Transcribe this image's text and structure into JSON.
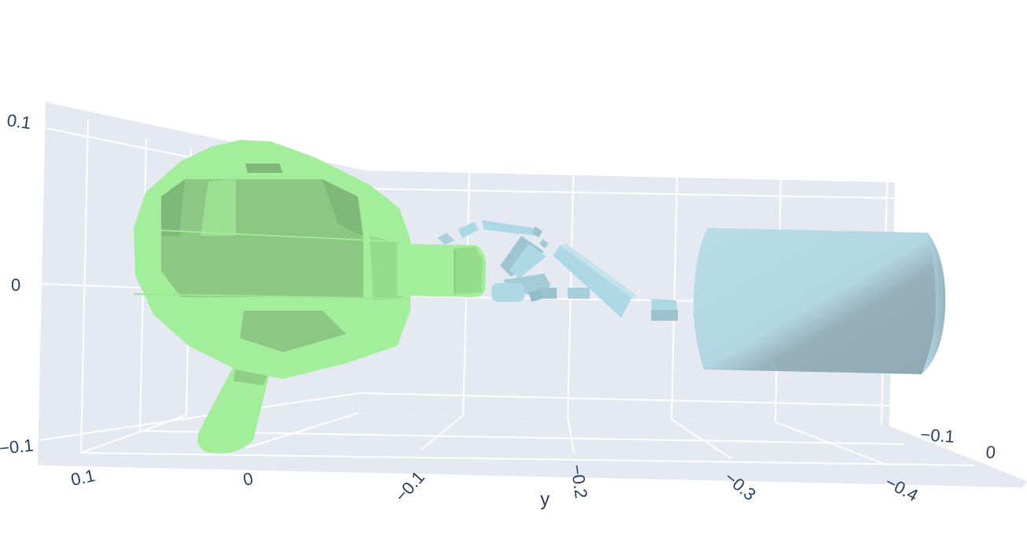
{
  "chart_data": {
    "type": "3d-mesh",
    "title": "",
    "colors": {
      "background": "#ffffff",
      "pane": "#e5e9f2",
      "grid": "#ffffff",
      "tick_text": "#2a3f5f",
      "object_mesh": "#a3ee9a",
      "gripper_mesh": "#add8e6"
    },
    "axes": {
      "y": {
        "title": "y",
        "ticks": [
          0.1,
          0,
          -0.1,
          -0.2,
          -0.3,
          -0.4
        ],
        "tick_labels": [
          "0.1",
          "0",
          "−0.1",
          "−0.2",
          "−0.3",
          "−0.4"
        ]
      },
      "z": {
        "title": "",
        "ticks": [
          -0.1,
          0,
          0.1
        ],
        "tick_labels": [
          "−0.1",
          "0",
          "0.1"
        ]
      },
      "x": {
        "title": "",
        "ticks": [
          -0.1,
          0
        ],
        "tick_labels": [
          "−0.1",
          "0"
        ]
      }
    },
    "meshes": [
      {
        "name": "object",
        "color": "#a3ee9a",
        "description": "graspable object (green body with handle)"
      },
      {
        "name": "hand",
        "color": "#add8e6",
        "description": "robot hand: palm cylinder and finger links"
      }
    ]
  }
}
